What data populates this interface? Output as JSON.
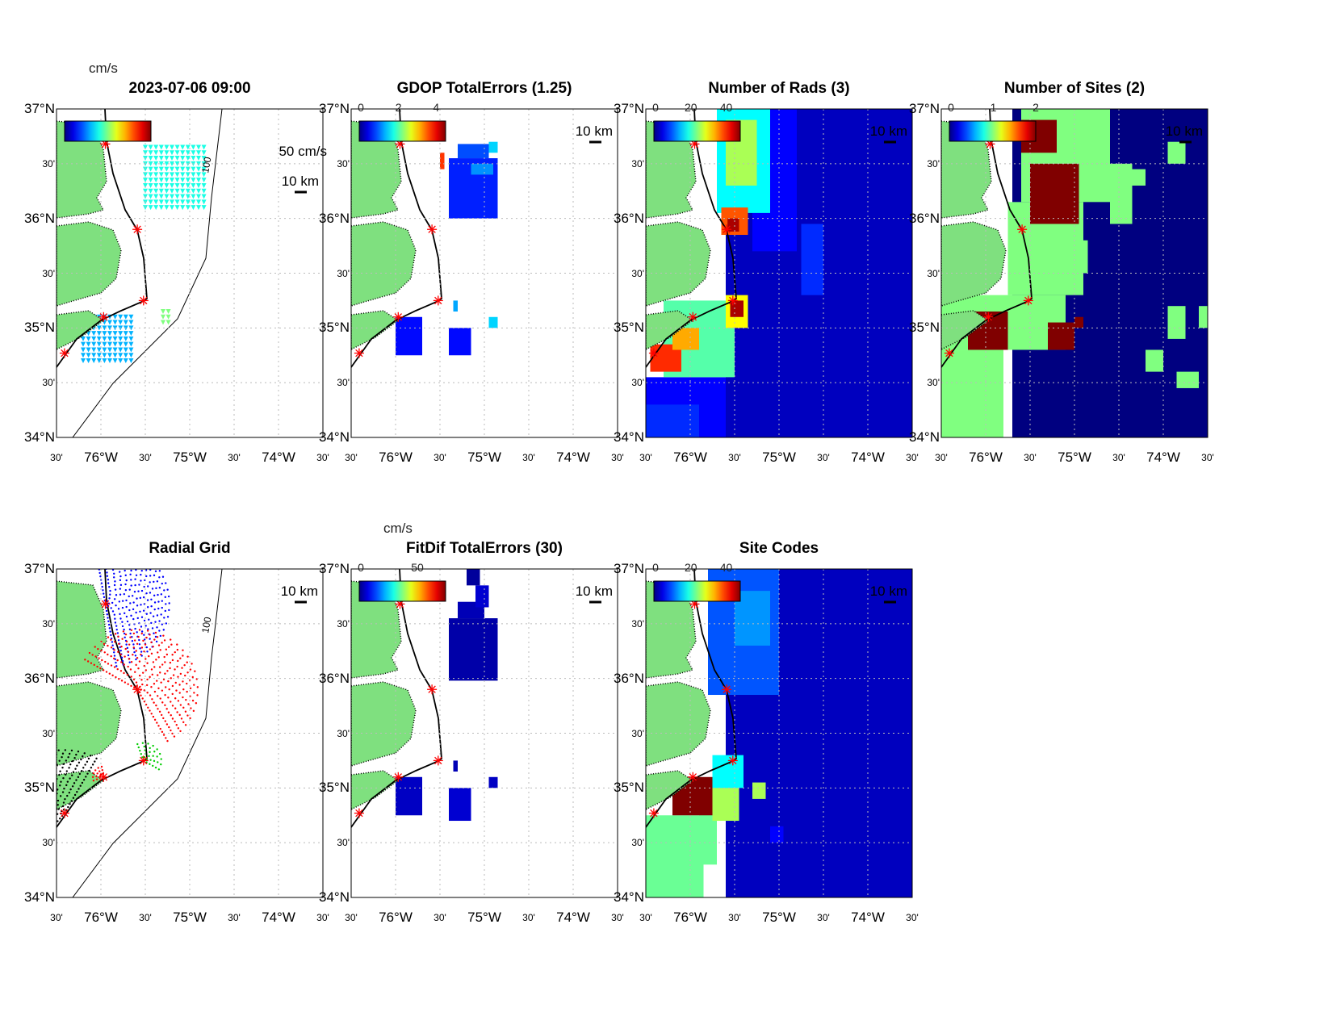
{
  "chart_data": [
    {
      "id": "p1",
      "type": "vector-map",
      "title": "2023-07-06 09:00",
      "colorbar_label": "cm/s",
      "colorbar_ticks": [],
      "vector_scale": "50 cm/s",
      "scale_bar": "10 km",
      "max": 50,
      "regions": [
        [
          -75.5,
          36.1,
          -74.8,
          36.65,
          20
        ],
        [
          -76.2,
          34.7,
          -75.6,
          35.1,
          15
        ],
        [
          -75.3,
          35.05,
          -75.2,
          35.15,
          25
        ]
      ]
    },
    {
      "id": "p2",
      "type": "heatmap",
      "title": "GDOP TotalErrors (1.25)",
      "colorbar_ticks": [
        "0",
        "2",
        "4"
      ],
      "colorbar_range": [
        0,
        4.5
      ],
      "scale_bar": "10 km",
      "max": 4.5,
      "regions": [
        [
          -75.4,
          36.0,
          -74.85,
          36.55,
          0.7
        ],
        [
          -75.3,
          36.55,
          -74.95,
          36.68,
          0.9
        ],
        [
          -75.15,
          36.4,
          -74.9,
          36.5,
          1.2
        ],
        [
          -74.95,
          36.6,
          -74.85,
          36.7,
          1.5
        ],
        [
          -75.5,
          36.45,
          -75.45,
          36.6,
          3.7
        ],
        [
          -76.0,
          34.75,
          -75.7,
          35.1,
          0.6
        ],
        [
          -75.4,
          34.75,
          -75.15,
          35.0,
          0.6
        ],
        [
          -74.95,
          35.0,
          -74.85,
          35.1,
          1.5
        ],
        [
          -75.35,
          35.15,
          -75.3,
          35.25,
          1.3
        ]
      ]
    },
    {
      "id": "p3",
      "type": "heatmap",
      "title": "Number of Rads (3)",
      "colorbar_ticks": [
        "0",
        "20",
        "40"
      ],
      "colorbar_range": [
        0,
        48
      ],
      "scale_bar": "10 km",
      "max": 48,
      "regions": [
        [
          -75.6,
          34.0,
          -73.5,
          37.0,
          3
        ],
        [
          -76.5,
          34.0,
          -75.6,
          34.55,
          6
        ],
        [
          -76.5,
          34.0,
          -75.9,
          34.3,
          8
        ],
        [
          -75.3,
          35.7,
          -74.8,
          37.0,
          6
        ],
        [
          -75.7,
          36.05,
          -75.1,
          37.0,
          18
        ],
        [
          -75.6,
          36.3,
          -75.25,
          36.9,
          26
        ],
        [
          -75.65,
          35.85,
          -75.35,
          36.1,
          38
        ],
        [
          -75.58,
          35.88,
          -75.45,
          36.0,
          46
        ],
        [
          -76.3,
          34.55,
          -75.5,
          35.25,
          22
        ],
        [
          -76.45,
          34.6,
          -76.1,
          34.85,
          40
        ],
        [
          -76.2,
          34.8,
          -75.9,
          35.0,
          34
        ],
        [
          -75.6,
          35.0,
          -75.35,
          35.3,
          30
        ],
        [
          -75.55,
          35.1,
          -75.4,
          35.25,
          46
        ],
        [
          -74.75,
          35.3,
          -74.5,
          35.95,
          8
        ],
        [
          -75.65,
          36.78,
          -75.5,
          36.88,
          44
        ]
      ]
    },
    {
      "id": "p4",
      "type": "heatmap",
      "title": "Number of Sites (2)",
      "colorbar_ticks": [
        "0",
        "1",
        "2"
      ],
      "colorbar_range": [
        0,
        2
      ],
      "scale_bar": "10 km",
      "max": 2,
      "regions": [
        [
          -75.7,
          34.0,
          -73.5,
          37.0,
          0
        ],
        [
          -76.5,
          34.0,
          -75.8,
          34.8,
          1
        ],
        [
          -76.5,
          34.8,
          -75.1,
          35.3,
          1
        ],
        [
          -75.75,
          35.3,
          -74.9,
          36.15,
          1
        ],
        [
          -75.6,
          36.15,
          -74.6,
          37.0,
          1
        ],
        [
          -75.1,
          35.5,
          -74.85,
          35.8,
          1
        ],
        [
          -74.6,
          35.95,
          -74.35,
          36.5,
          1
        ],
        [
          -74.4,
          36.3,
          -74.2,
          36.45,
          1
        ],
        [
          -73.95,
          36.5,
          -73.75,
          36.7,
          1
        ],
        [
          -74.2,
          34.6,
          -74.0,
          34.8,
          1
        ],
        [
          -73.95,
          34.9,
          -73.75,
          35.2,
          1
        ],
        [
          -73.6,
          35.0,
          -73.5,
          35.2,
          1
        ],
        [
          -73.85,
          34.45,
          -73.6,
          34.6,
          1
        ],
        [
          -74.8,
          36.4,
          -74.6,
          36.6,
          1
        ],
        [
          -75.5,
          35.95,
          -74.95,
          36.5,
          2
        ],
        [
          -75.6,
          36.6,
          -75.2,
          36.9,
          2
        ],
        [
          -76.2,
          34.8,
          -75.75,
          35.15,
          2
        ],
        [
          -75.3,
          34.8,
          -75.0,
          35.05,
          2
        ],
        [
          -75.0,
          35.0,
          -74.9,
          35.1,
          2
        ]
      ]
    },
    {
      "id": "p5",
      "type": "scatter-map",
      "title": "Radial Grid",
      "scale_bar": "10 km",
      "rings": [
        {
          "site": 0,
          "color": "#0000ff",
          "rmax": 0.75,
          "a0": -80,
          "a1": 100
        },
        {
          "site": 1,
          "color": "#ff0000",
          "rmax": 0.7,
          "a0": -60,
          "a1": 150
        },
        {
          "site": 2,
          "color": "#00cc00",
          "rmax": 0.2,
          "a0": -30,
          "a1": 110
        },
        {
          "site": 3,
          "color": "#ff0000",
          "rmax": 0.15,
          "a0": 100,
          "a1": 200
        },
        {
          "site": 4,
          "color": "#000000",
          "rmax": 0.75,
          "a0": 60,
          "a1": 230
        }
      ]
    },
    {
      "id": "p6",
      "type": "heatmap",
      "title": "FitDif TotalErrors (30)",
      "colorbar_label": "cm/s",
      "colorbar_ticks": [
        "0",
        "50"
      ],
      "colorbar_range": [
        0,
        75
      ],
      "scale_bar": "10 km",
      "max": 75,
      "regions": [
        [
          -75.4,
          35.98,
          -74.85,
          36.55,
          3
        ],
        [
          -75.3,
          36.55,
          -75.0,
          36.7,
          4
        ],
        [
          -75.1,
          36.65,
          -74.95,
          36.85,
          6
        ],
        [
          -75.2,
          36.85,
          -75.05,
          37.0,
          2
        ],
        [
          -76.0,
          34.75,
          -75.7,
          35.1,
          5
        ],
        [
          -75.4,
          34.7,
          -75.15,
          35.0,
          6
        ],
        [
          -74.95,
          35.0,
          -74.85,
          35.1,
          5
        ],
        [
          -75.35,
          35.15,
          -75.3,
          35.25,
          4
        ]
      ]
    },
    {
      "id": "p7",
      "type": "heatmap",
      "title": "Site Codes",
      "colorbar_ticks": [
        "0",
        "20",
        "40"
      ],
      "colorbar_range": [
        0,
        48
      ],
      "scale_bar": "10 km",
      "max": 48,
      "regions": [
        [
          -75.6,
          34.0,
          -73.5,
          37.0,
          3
        ],
        [
          -75.8,
          35.85,
          -75.0,
          37.0,
          10
        ],
        [
          -75.5,
          36.3,
          -75.1,
          36.8,
          13
        ],
        [
          -76.5,
          34.0,
          -75.85,
          34.75,
          23
        ],
        [
          -75.9,
          34.3,
          -75.7,
          34.8,
          23
        ],
        [
          -76.2,
          34.75,
          -75.75,
          35.1,
          48
        ],
        [
          -75.75,
          34.7,
          -75.45,
          35.1,
          26
        ],
        [
          -75.75,
          35.0,
          -75.4,
          35.3,
          18
        ],
        [
          -75.3,
          34.9,
          -75.15,
          35.05,
          26
        ],
        [
          -75.1,
          34.5,
          -74.95,
          34.65,
          6
        ]
      ]
    }
  ],
  "sites": [
    [
      -75.95,
      36.68
    ],
    [
      -75.59,
      35.9
    ],
    [
      -75.52,
      35.25
    ],
    [
      -75.97,
      35.1
    ],
    [
      -76.41,
      34.77
    ]
  ],
  "axes": {
    "lat_ticks": [
      "37°N",
      "30'",
      "36°N",
      "30'",
      "35°N",
      "30'",
      "34°N"
    ],
    "lon_ticks": [
      "30'",
      "76°W",
      "30'",
      "75°W",
      "30'",
      "74°W",
      "30'"
    ]
  },
  "contour_label": "100"
}
